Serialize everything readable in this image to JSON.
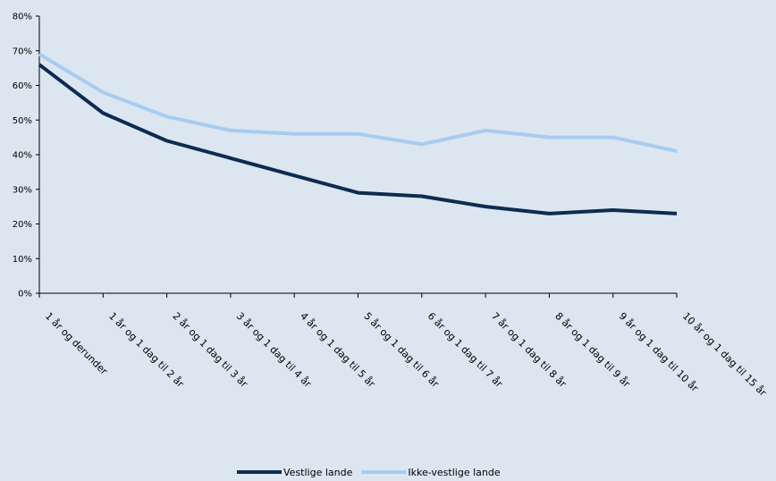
{
  "chart_data": {
    "type": "line",
    "categories": [
      "1 år og derunder",
      "1 år og 1 dag til 2 år",
      "2 år og 1 dag til 3 år",
      "3 år og 1 dag til 4 år",
      "4 år og 1 dag til 5 år",
      "5 år og 1 dag til 6 år",
      "6 år og 1 dag til 7 år",
      "7 år og 1 dag til 8 år",
      "8 år og 1 dag til 9 år",
      "9 år og 1 dag til 10 år",
      "10 år og 1 dag til 15 år"
    ],
    "series": [
      {
        "name": "Vestlige lande",
        "color": "#0d2b52",
        "values": [
          66,
          52,
          44,
          39,
          34,
          29,
          28,
          25,
          23,
          24,
          23
        ]
      },
      {
        "name": "Ikke-vestlige lande",
        "color": "#a7ccf2",
        "values": [
          69,
          58,
          51,
          47,
          46,
          46,
          43,
          47,
          45,
          45,
          41
        ]
      }
    ],
    "yticks": [
      "0%",
      "10%",
      "20%",
      "30%",
      "40%",
      "50%",
      "60%",
      "70%",
      "80%"
    ],
    "ylim": [
      0,
      80
    ],
    "grid": false,
    "legend_position": "bottom-center"
  }
}
